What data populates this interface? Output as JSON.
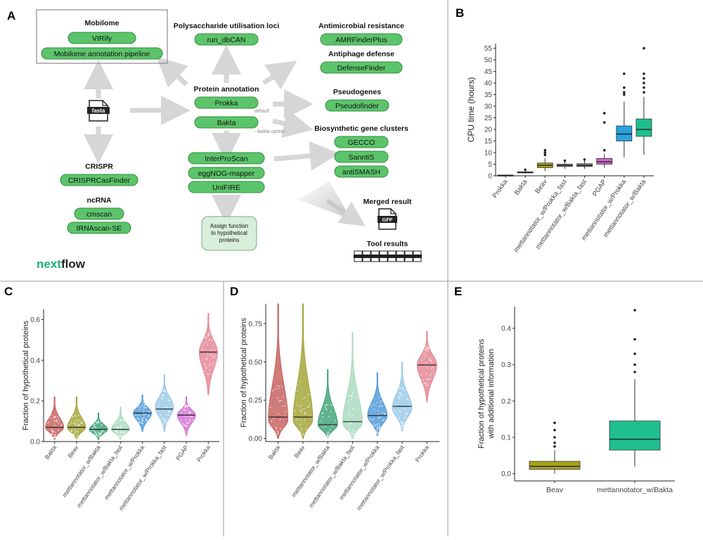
{
  "panels": {
    "A": {
      "letter": "A",
      "mobilome": {
        "title": "Mobilome",
        "tools": [
          "VIRify",
          "Mobilome annotation pipeline"
        ]
      },
      "pul": {
        "title": "Polysaccharide utilisation loci",
        "tools": [
          "run_dbCAN"
        ]
      },
      "amr": {
        "title": "Antimicrobial resistance",
        "tools": [
          "AMRFinderPlus"
        ]
      },
      "antiphage": {
        "title": "Antiphage defense",
        "tools": [
          "DefenseFinder"
        ]
      },
      "protein": {
        "title": "Protein annotation",
        "tools": [
          "Prokka",
          "Bakta"
        ],
        "default_note": "default",
        "option_note": "--bakta option"
      },
      "pseudo": {
        "title": "Pseudogenes",
        "tools": [
          "Pseudofinder"
        ]
      },
      "bgc": {
        "title": "Biosynthetic gene clusters",
        "tools": [
          "GECCO",
          "SanntiS",
          "antiSMASH"
        ]
      },
      "function": {
        "tools": [
          "InterProScan",
          "eggNOG-mapper",
          "UniFIRE"
        ]
      },
      "assign": {
        "lines": [
          "Assign function",
          "to hypothetical",
          "proteins"
        ]
      },
      "crispr": {
        "title": "CRISPR",
        "tools": [
          "CRISPRCasFinder"
        ]
      },
      "ncrna": {
        "title": "ncRNA",
        "tools": [
          "cmscan",
          "tRNAscan-SE"
        ]
      },
      "merged": {
        "title": "Merged result",
        "file": "GFF"
      },
      "toolres": {
        "title": "Tool results"
      },
      "fasta": {
        "label": "fasta"
      },
      "logo": {
        "part1": "next",
        "part2": "flow"
      }
    },
    "B": {
      "letter": "B",
      "chart_data": {
        "type": "box",
        "ylabel": "CPU time (hours)",
        "ylim": [
          0,
          57
        ],
        "yticks": [
          0,
          5,
          10,
          15,
          20,
          25,
          30,
          35,
          40,
          45,
          50,
          55
        ],
        "categories": [
          "Prokka",
          "Bakta",
          "Beav",
          "mettannotator_w/Prokka_fast",
          "mettannotator_w/Bakta_fast",
          "PGAP",
          "mettannotator_w/Prokka",
          "mettannotator_w/Bakta"
        ],
        "colors": [
          "#8a8a8a",
          "#8a8a8a",
          "#a8a21a",
          "#8a8a8a",
          "#8a8a8a",
          "#cc66cc",
          "#29a3e0",
          "#1fbf8f"
        ],
        "boxes": [
          {
            "min": 0,
            "q1": 0.1,
            "median": 0.2,
            "q3": 0.3,
            "max": 0.5,
            "outliers": []
          },
          {
            "min": 1.0,
            "q1": 1.3,
            "median": 1.5,
            "q3": 1.7,
            "max": 2.2,
            "outliers": [
              2.6
            ]
          },
          {
            "min": 2,
            "q1": 3.5,
            "median": 4.5,
            "q3": 5.5,
            "max": 7.5,
            "outliers": [
              9,
              10,
              11
            ]
          },
          {
            "min": 3,
            "q1": 4,
            "median": 4.5,
            "q3": 5,
            "max": 6,
            "outliers": [
              6.5
            ]
          },
          {
            "min": 3,
            "q1": 4,
            "median": 4.5,
            "q3": 5.2,
            "max": 6.5,
            "outliers": [
              7
            ]
          },
          {
            "min": 3.5,
            "q1": 5,
            "median": 6,
            "q3": 7.5,
            "max": 9.5,
            "outliers": [
              11,
              23,
              27
            ]
          },
          {
            "min": 8,
            "q1": 15,
            "median": 18,
            "q3": 21.5,
            "max": 32,
            "outliers": [
              35,
              36,
              38,
              44
            ]
          },
          {
            "min": 9,
            "q1": 17,
            "median": 20,
            "q3": 24.5,
            "max": 34,
            "outliers": [
              36,
              38,
              40,
              42,
              44,
              55
            ]
          }
        ]
      }
    },
    "C": {
      "letter": "C",
      "chart_data": {
        "type": "violin",
        "ylabel": "Fraction of hypothetical proteins",
        "ylim": [
          0,
          0.65
        ],
        "yticks": [
          0.0,
          0.2,
          0.4,
          0.6
        ],
        "ytick_labels": [
          "0.0",
          "0.2",
          "0.4",
          "0.6"
        ],
        "categories": [
          "Bakta",
          "Beav",
          "mettannotator_w/Bakta",
          "mettannotator_w/Bakta_fast",
          "mettannotator_w/Prokka",
          "mettannotator_w/Prokka_fast",
          "PGAP",
          "Prokka"
        ],
        "colors": [
          "#c0504d",
          "#999922",
          "#2e9a6a",
          "#9fd6b8",
          "#3d8fd6",
          "#8fc4e6",
          "#cc66cc",
          "#e07a8a"
        ],
        "violins": [
          {
            "min": 0.01,
            "max": 0.22,
            "median": 0.07,
            "mode": 0.07
          },
          {
            "min": 0.01,
            "max": 0.22,
            "median": 0.07,
            "mode": 0.07
          },
          {
            "min": 0.01,
            "max": 0.14,
            "median": 0.06,
            "mode": 0.06
          },
          {
            "min": 0.01,
            "max": 0.17,
            "median": 0.06,
            "mode": 0.06
          },
          {
            "min": 0.05,
            "max": 0.23,
            "median": 0.14,
            "mode": 0.14
          },
          {
            "min": 0.05,
            "max": 0.33,
            "median": 0.16,
            "mode": 0.17
          },
          {
            "min": 0.03,
            "max": 0.22,
            "median": 0.13,
            "mode": 0.13
          },
          {
            "min": 0.23,
            "max": 0.63,
            "median": 0.44,
            "mode": 0.44
          }
        ]
      }
    },
    "D": {
      "letter": "D",
      "chart_data": {
        "type": "violin",
        "ylabel": "Fraction of hypothetical proteins",
        "ylim": [
          -0.02,
          0.88
        ],
        "yticks": [
          0.0,
          0.25,
          0.5,
          0.75
        ],
        "ytick_labels": [
          "0.00",
          "0.25",
          "0.50",
          "0.75"
        ],
        "categories": [
          "Bakta",
          "Beav",
          "mettannotator_w/Bakta",
          "mettannotator_w/Bakta_fast",
          "mettannotator_w/Prokka",
          "mettannotator_w/Prokka_fast",
          "Prokka"
        ],
        "colors": [
          "#c0504d",
          "#999922",
          "#2e9a6a",
          "#9fd6b8",
          "#3d8fd6",
          "#8fc4e6",
          "#e07a8a"
        ],
        "violins": [
          {
            "min": 0.0,
            "max": 0.88,
            "median": 0.14,
            "mode": 0.12
          },
          {
            "min": 0.0,
            "max": 0.88,
            "median": 0.14,
            "mode": 0.12
          },
          {
            "min": 0.0,
            "max": 0.45,
            "median": 0.09,
            "mode": 0.09
          },
          {
            "min": 0.0,
            "max": 0.69,
            "median": 0.11,
            "mode": 0.1
          },
          {
            "min": 0.02,
            "max": 0.43,
            "median": 0.15,
            "mode": 0.15
          },
          {
            "min": 0.05,
            "max": 0.5,
            "median": 0.21,
            "mode": 0.2
          },
          {
            "min": 0.24,
            "max": 0.7,
            "median": 0.48,
            "mode": 0.48
          }
        ]
      }
    },
    "E": {
      "letter": "E",
      "chart_data": {
        "type": "box",
        "ylabel_lines": [
          "Fraction of hypothetical proteins",
          "with additional information"
        ],
        "ylim": [
          -0.02,
          0.46
        ],
        "yticks": [
          0.0,
          0.1,
          0.2,
          0.3,
          0.4
        ],
        "ytick_labels": [
          "0.0",
          "0.1",
          "0.2",
          "0.3",
          "0.4"
        ],
        "categories": [
          "Beav",
          "mettannotator_w/Bakta"
        ],
        "colors": [
          "#a8a21a",
          "#1fbf8f"
        ],
        "boxes": [
          {
            "min": 0.0,
            "q1": 0.012,
            "median": 0.02,
            "q3": 0.034,
            "max": 0.065,
            "outliers": [
              0.075,
              0.085,
              0.1,
              0.12,
              0.14
            ]
          },
          {
            "min": 0.02,
            "q1": 0.065,
            "median": 0.095,
            "q3": 0.145,
            "max": 0.26,
            "outliers": [
              0.28,
              0.3,
              0.33,
              0.37,
              0.45
            ]
          }
        ]
      }
    }
  }
}
